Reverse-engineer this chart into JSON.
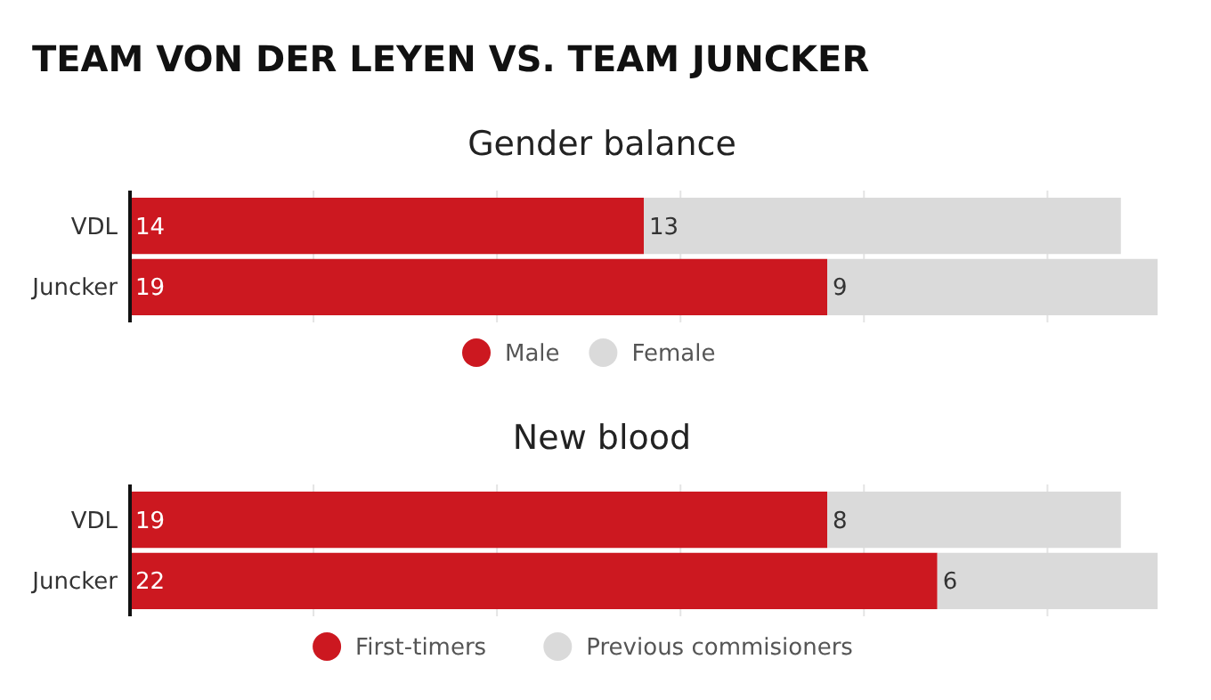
{
  "chart_data": [
    {
      "type": "bar",
      "orientation": "horizontal",
      "stacked": true,
      "title": "TEAM VON DER LEYEN VS. TEAM JUNCKER",
      "subtitle": "Gender balance",
      "categories": [
        "VDL",
        "Juncker"
      ],
      "series": [
        {
          "name": "Male",
          "color": "#cc1820",
          "values": [
            14,
            19
          ]
        },
        {
          "name": "Female",
          "color": "#dadada",
          "values": [
            13,
            9
          ]
        }
      ],
      "xlim": [
        0,
        28
      ],
      "xticks": [
        {
          "value": 0,
          "label": null
        },
        {
          "value": 5,
          "label": null
        },
        {
          "value": 10,
          "label": null
        },
        {
          "value": 15,
          "label": null
        },
        {
          "value": 20,
          "label": null
        },
        {
          "value": 25,
          "label": null
        }
      ],
      "tick_labels": "y",
      "grid": "x",
      "legend": "bottom",
      "data_labels": true
    },
    {
      "type": "bar",
      "orientation": "horizontal",
      "stacked": true,
      "title": "New blood",
      "categories": [
        "VDL",
        "Juncker"
      ],
      "series": [
        {
          "name": "First-timers",
          "color": "#cc1820",
          "values": [
            19,
            22
          ]
        },
        {
          "name": "Previous commisioners",
          "color": "#dadada",
          "values": [
            8,
            6
          ]
        }
      ],
      "xlim": [
        0,
        28
      ],
      "xticks": [
        {
          "value": 0,
          "label": null
        },
        {
          "value": 5,
          "label": null
        },
        {
          "value": 10,
          "label": null
        },
        {
          "value": 15,
          "label": null
        },
        {
          "value": 20,
          "label": null
        },
        {
          "value": 25,
          "label": null
        }
      ],
      "tick_labels": "y",
      "grid": "x",
      "legend": "bottom",
      "data_labels": true
    }
  ]
}
